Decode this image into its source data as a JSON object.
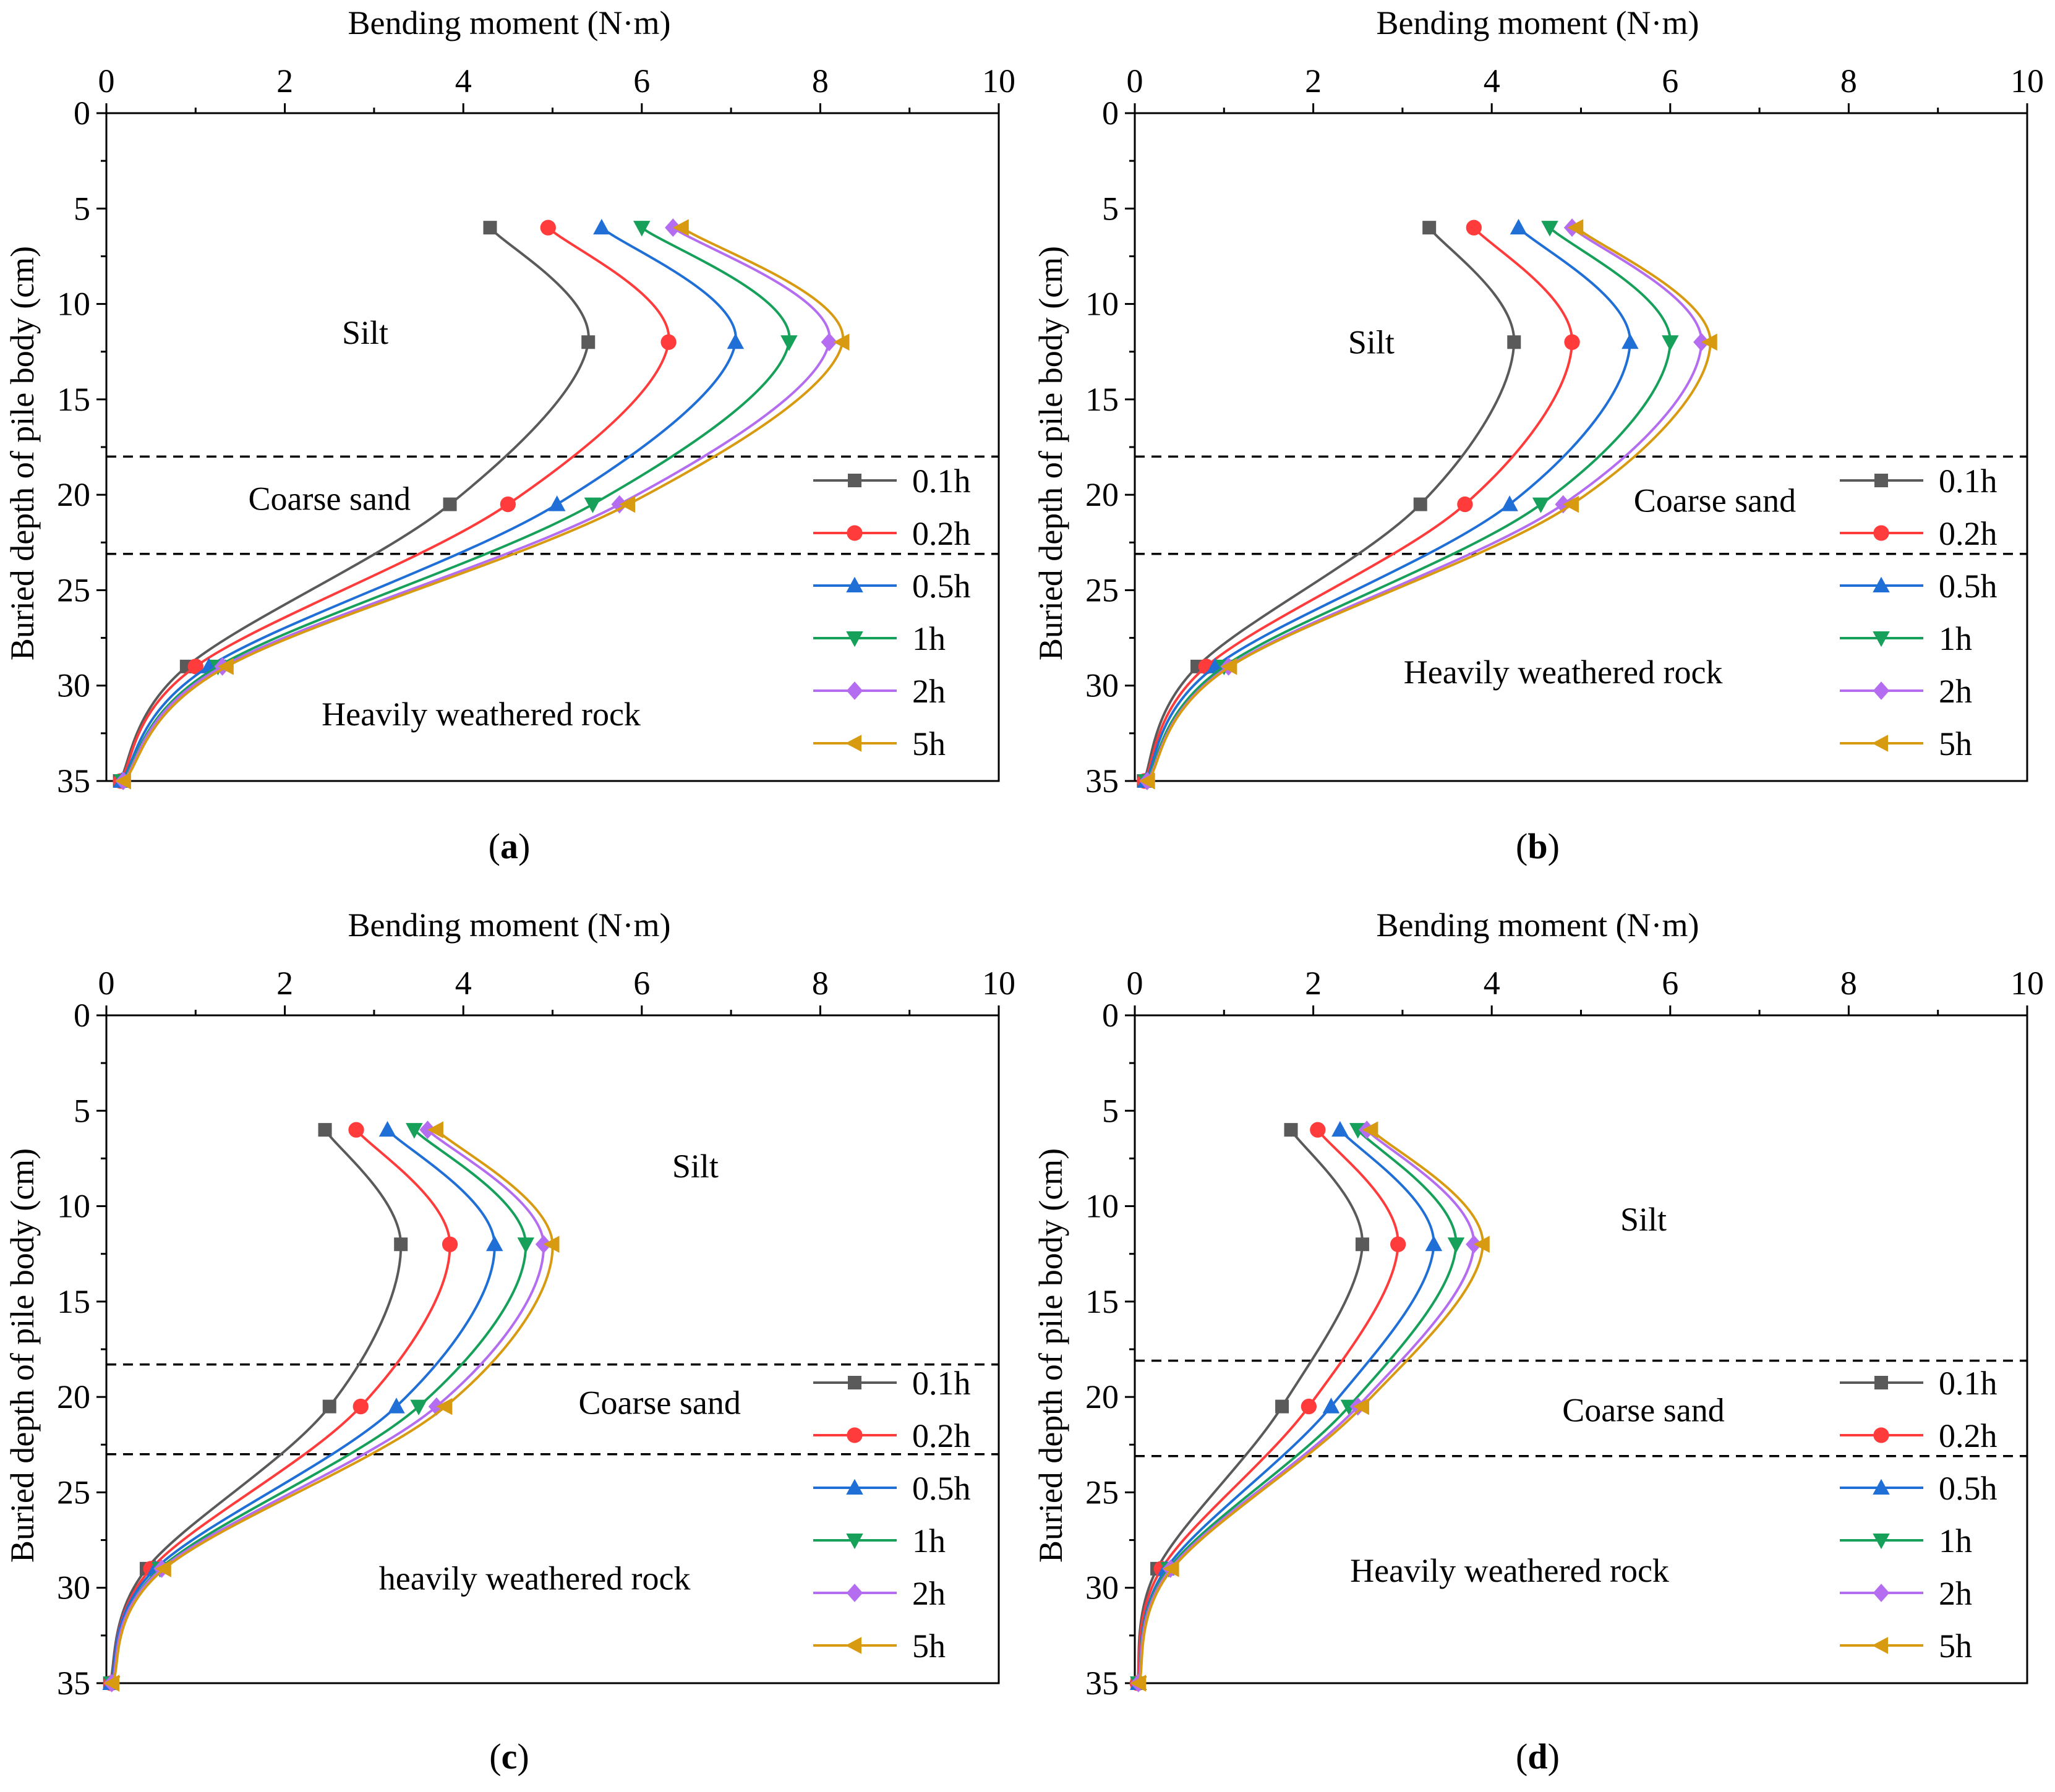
{
  "chart_data": [
    {
      "type": "line",
      "panel": "(a)",
      "panel_letter": "a",
      "xlabel": "Bending moment (N·m)",
      "ylabel": "Buried depth of pile body (cm)",
      "xlim": [
        0,
        10
      ],
      "ylim": [
        0,
        35
      ],
      "x_ticks": [
        "0",
        "2",
        "4",
        "6",
        "8",
        "10"
      ],
      "y_ticks": [
        "0",
        "5",
        "10",
        "15",
        "20",
        "25",
        "30",
        "35"
      ],
      "depths": [
        6,
        12,
        20.5,
        29,
        35
      ],
      "boundaries": [
        18,
        23.1
      ],
      "layers": [
        {
          "label": "Silt",
          "depth": 11.5,
          "x": 2.9
        },
        {
          "label": "Coarse sand",
          "depth": 20.2,
          "x": 2.5
        },
        {
          "label": "Heavily weathered rock",
          "depth": 31.5,
          "x": 4.2
        }
      ],
      "series": [
        {
          "name": "0.1h",
          "values": [
            4.3,
            5.4,
            3.85,
            0.9,
            0.15
          ]
        },
        {
          "name": "0.2h",
          "values": [
            4.95,
            6.3,
            4.5,
            1.0,
            0.16
          ]
        },
        {
          "name": "0.5h",
          "values": [
            5.55,
            7.05,
            5.05,
            1.15,
            0.17
          ]
        },
        {
          "name": "1h",
          "values": [
            6.0,
            7.65,
            5.45,
            1.25,
            0.18
          ]
        },
        {
          "name": "2h",
          "values": [
            6.35,
            8.1,
            5.75,
            1.3,
            0.19
          ]
        },
        {
          "name": "5h",
          "values": [
            6.45,
            8.25,
            5.85,
            1.35,
            0.2
          ]
        }
      ]
    },
    {
      "type": "line",
      "panel": "(b)",
      "panel_letter": "b",
      "xlabel": "Bending moment (N·m)",
      "ylabel": "Buried depth of pile body (cm)",
      "xlim": [
        0,
        10
      ],
      "ylim": [
        0,
        35
      ],
      "x_ticks": [
        "0",
        "2",
        "4",
        "6",
        "8",
        "10"
      ],
      "y_ticks": [
        "0",
        "5",
        "10",
        "15",
        "20",
        "25",
        "30",
        "35"
      ],
      "depths": [
        6,
        12,
        20.5,
        29,
        35
      ],
      "boundaries": [
        18,
        23.1
      ],
      "layers": [
        {
          "label": "Silt",
          "depth": 12,
          "x": 2.65
        },
        {
          "label": "Coarse sand",
          "depth": 20.3,
          "x": 6.5
        },
        {
          "label": "Heavily weathered rock",
          "depth": 29.3,
          "x": 4.8
        }
      ],
      "series": [
        {
          "name": "0.1h",
          "values": [
            3.3,
            4.25,
            3.2,
            0.7,
            0.1
          ]
        },
        {
          "name": "0.2h",
          "values": [
            3.8,
            4.9,
            3.7,
            0.8,
            0.11
          ]
        },
        {
          "name": "0.5h",
          "values": [
            4.3,
            5.55,
            4.2,
            0.9,
            0.12
          ]
        },
        {
          "name": "1h",
          "values": [
            4.65,
            6.0,
            4.55,
            1.0,
            0.13
          ]
        },
        {
          "name": "2h",
          "values": [
            4.9,
            6.35,
            4.8,
            1.05,
            0.14
          ]
        },
        {
          "name": "5h",
          "values": [
            4.95,
            6.45,
            4.9,
            1.07,
            0.15
          ]
        }
      ]
    },
    {
      "type": "line",
      "panel": "(c)",
      "panel_letter": "c",
      "xlabel": "Bending moment (N·m)",
      "ylabel": "Buried depth of pile body (cm)",
      "xlim": [
        0,
        10
      ],
      "ylim": [
        0,
        35
      ],
      "x_ticks": [
        "0",
        "2",
        "4",
        "6",
        "8",
        "10"
      ],
      "y_ticks": [
        "0",
        "5",
        "10",
        "15",
        "20",
        "25",
        "30",
        "35"
      ],
      "depths": [
        6,
        12,
        20.5,
        29,
        35
      ],
      "boundaries": [
        18.3,
        23
      ],
      "layers": [
        {
          "label": "Silt",
          "depth": 7.9,
          "x": 6.6
        },
        {
          "label": "Coarse sand",
          "depth": 20.3,
          "x": 6.2
        },
        {
          "label": "heavily weathered rock",
          "depth": 29.5,
          "x": 4.8
        }
      ],
      "series": [
        {
          "name": "0.1h",
          "values": [
            2.45,
            3.3,
            2.5,
            0.45,
            0.04
          ]
        },
        {
          "name": "0.2h",
          "values": [
            2.8,
            3.85,
            2.85,
            0.5,
            0.05
          ]
        },
        {
          "name": "0.5h",
          "values": [
            3.15,
            4.35,
            3.25,
            0.55,
            0.05
          ]
        },
        {
          "name": "1h",
          "values": [
            3.45,
            4.7,
            3.5,
            0.6,
            0.06
          ]
        },
        {
          "name": "2h",
          "values": [
            3.6,
            4.9,
            3.7,
            0.62,
            0.06
          ]
        },
        {
          "name": "5h",
          "values": [
            3.7,
            5.0,
            3.8,
            0.65,
            0.07
          ]
        }
      ]
    },
    {
      "type": "line",
      "panel": "(d)",
      "panel_letter": "d",
      "xlabel": "Bending moment (N·m)",
      "ylabel": "Buried depth of pile body (cm)",
      "xlim": [
        0,
        10
      ],
      "ylim": [
        0,
        35
      ],
      "x_ticks": [
        "0",
        "2",
        "4",
        "6",
        "8",
        "10"
      ],
      "y_ticks": [
        "0",
        "5",
        "10",
        "15",
        "20",
        "25",
        "30",
        "35"
      ],
      "depths": [
        6,
        12,
        20.5,
        29,
        35
      ],
      "boundaries": [
        18.1,
        23.1
      ],
      "layers": [
        {
          "label": "Silt",
          "depth": 10.7,
          "x": 5.7
        },
        {
          "label": "Coarse sand",
          "depth": 20.7,
          "x": 5.7
        },
        {
          "label": "Heavily weathered rock",
          "depth": 29.1,
          "x": 4.2
        }
      ],
      "series": [
        {
          "name": "0.1h",
          "values": [
            1.75,
            2.55,
            1.65,
            0.25,
            0.03
          ]
        },
        {
          "name": "0.2h",
          "values": [
            2.05,
            2.95,
            1.95,
            0.3,
            0.03
          ]
        },
        {
          "name": "0.5h",
          "values": [
            2.3,
            3.35,
            2.2,
            0.35,
            0.04
          ]
        },
        {
          "name": "1h",
          "values": [
            2.5,
            3.6,
            2.4,
            0.38,
            0.04
          ]
        },
        {
          "name": "2h",
          "values": [
            2.6,
            3.8,
            2.5,
            0.4,
            0.04
          ]
        },
        {
          "name": "5h",
          "values": [
            2.65,
            3.9,
            2.55,
            0.42,
            0.05
          ]
        }
      ]
    }
  ],
  "series_style": [
    {
      "name": "0.1h",
      "color": "#5a5a5a",
      "marker": "square-marker"
    },
    {
      "name": "0.2h",
      "color": "#ff3b3b",
      "marker": "circle-marker"
    },
    {
      "name": "0.5h",
      "color": "#1f6fd6",
      "marker": "triangle-up-marker"
    },
    {
      "name": "1h",
      "color": "#16a05a",
      "marker": "triangle-down-marker"
    },
    {
      "name": "2h",
      "color": "#b46cf0",
      "marker": "diamond-marker"
    },
    {
      "name": "5h",
      "color": "#d79a10",
      "marker": "triangle-left-marker"
    }
  ]
}
